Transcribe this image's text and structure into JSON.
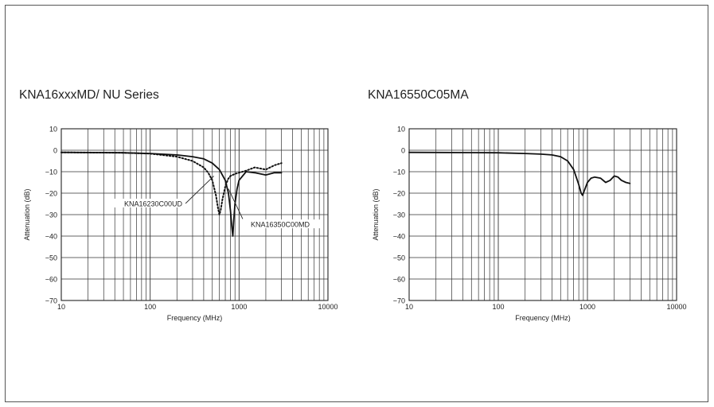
{
  "chart_data": [
    {
      "type": "line",
      "title": "KNA16xxxMD/ NU Series",
      "xlabel": "Frequency (MHz)",
      "ylabel": "Attenuation (dB)",
      "xscale": "log",
      "xlim": [
        10,
        10000
      ],
      "ylim": [
        -70,
        10
      ],
      "xticks": [
        10,
        100,
        1000,
        10000
      ],
      "yticks": [
        10,
        0,
        -10,
        -20,
        -30,
        -40,
        -50,
        -60,
        -70
      ],
      "grid": true,
      "series": [
        {
          "name": "KNA16350C00MD",
          "style": "solid",
          "x": [
            10,
            50,
            100,
            200,
            300,
            400,
            500,
            600,
            700,
            760,
            800,
            830,
            850,
            870,
            900,
            950,
            1000,
            1200,
            1500,
            2000,
            2500,
            3000
          ],
          "y": [
            -1,
            -1.2,
            -1.5,
            -2.2,
            -3,
            -4,
            -6,
            -9,
            -14,
            -20,
            -28,
            -36,
            -40,
            -33,
            -25,
            -18,
            -14,
            -10,
            -10.5,
            -11.5,
            -10.5,
            -10.5
          ]
        },
        {
          "name": "KNA16230C00UD",
          "style": "dotted",
          "x": [
            10,
            50,
            100,
            200,
            300,
            400,
            450,
            500,
            550,
            580,
            600,
            620,
            650,
            700,
            750,
            800,
            900,
            1000,
            1200,
            1500,
            2000,
            2500,
            3000
          ],
          "y": [
            -1,
            -1.2,
            -1.6,
            -3,
            -5,
            -8,
            -10.5,
            -14,
            -21,
            -27,
            -30,
            -28,
            -23,
            -17,
            -13.5,
            -12,
            -11,
            -10.5,
            -9.5,
            -8,
            -9,
            -7,
            -6
          ]
        }
      ],
      "annotations": [
        "KNA16230C00UD",
        "KNA16350C00MD"
      ]
    },
    {
      "type": "line",
      "title": "KNA16550C05MA",
      "xlabel": "Frequency (MHz)",
      "ylabel": "Attenuation (dB)",
      "xscale": "log",
      "xlim": [
        10,
        10000
      ],
      "ylim": [
        -70,
        10
      ],
      "xticks": [
        10,
        100,
        1000,
        10000
      ],
      "yticks": [
        10,
        0,
        -10,
        -20,
        -30,
        -40,
        -50,
        -60,
        -70
      ],
      "grid": true,
      "series": [
        {
          "name": "",
          "style": "solid",
          "x": [
            10,
            50,
            100,
            200,
            300,
            400,
            500,
            600,
            700,
            800,
            850,
            880,
            920,
            1000,
            1100,
            1200,
            1400,
            1600,
            1800,
            2000,
            2200,
            2400,
            2700,
            3000
          ],
          "y": [
            -1,
            -1.1,
            -1.2,
            -1.5,
            -1.8,
            -2.2,
            -3,
            -5,
            -9,
            -16,
            -20,
            -21,
            -19,
            -15,
            -13,
            -12.5,
            -13,
            -15,
            -14,
            -12,
            -12.5,
            -14,
            -15,
            -15.5
          ]
        }
      ]
    }
  ]
}
